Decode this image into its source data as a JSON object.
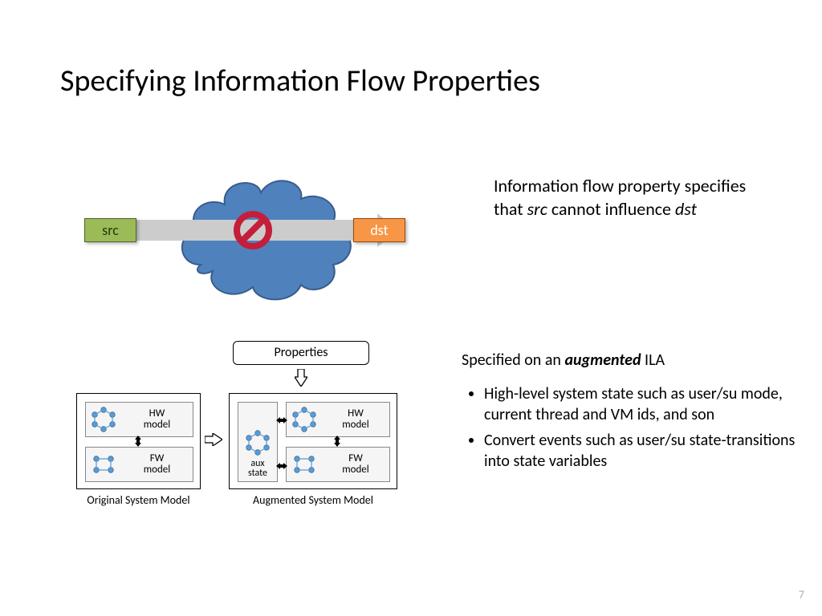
{
  "title": "Specifying Information Flow Properties",
  "page_number": "7",
  "colors": {
    "cloud_fill": "#4f81bd",
    "cloud_stroke": "#385d8a",
    "src_fill": "#9bbb59",
    "dst_fill": "#f79646",
    "arrow_fill": "#cccccc",
    "prohibit": "#c41e3a",
    "node_fill": "#5b9bd5",
    "node_stroke": "#41719c"
  },
  "top": {
    "src_label": "src",
    "dst_label": "dst",
    "description_html": "Information flow property specifies that <em>src</em> cannot influence <em>dst</em>"
  },
  "bottom": {
    "properties_label": "Properties",
    "hw_label": "HW model",
    "fw_label": "FW model",
    "aux_label": "aux state",
    "caption_orig": "Original System Model",
    "caption_aug": "Augmented System Model",
    "heading_html": "Specified on an <b><i>augmented</i></b> ILA",
    "bullets": [
      "High-level system state such as user/su mode, current thread and VM ids, and son",
      "Convert events such as user/su state-transitions into state variables"
    ]
  }
}
